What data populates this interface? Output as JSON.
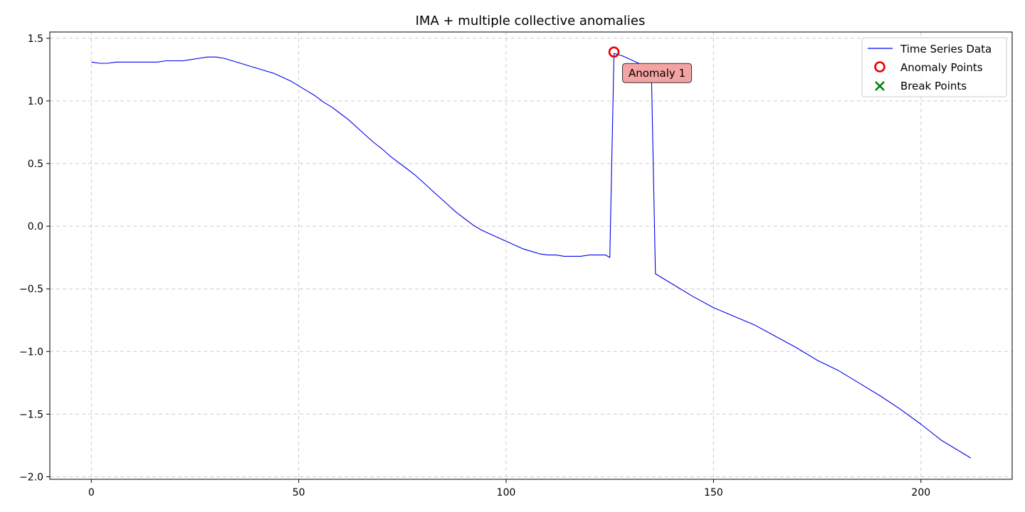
{
  "chart_data": {
    "type": "line",
    "title": "IMA + multiple collective anomalies",
    "xlabel": "",
    "ylabel": "",
    "xlim": [
      -10,
      222
    ],
    "ylim": [
      -2.02,
      1.55
    ],
    "xticks": [
      0,
      50,
      100,
      150,
      200
    ],
    "yticks": [
      1.5,
      1.0,
      0.5,
      0.0,
      -0.5,
      -1.0,
      -1.5,
      -2.0
    ],
    "ytick_labels": [
      "1.5",
      "1.0",
      "0.5",
      "0.0",
      "−0.5",
      "−1.0",
      "−1.5",
      "−2.0"
    ],
    "grid": true,
    "legend_position": "top-right",
    "colors": {
      "series": "#0000ee",
      "anomaly": "#ee0000",
      "break": "#008000",
      "annotation_fill": "#f4a3a3"
    },
    "series": [
      {
        "name": "Time Series Data",
        "x": [
          0,
          2,
          4,
          6,
          8,
          10,
          12,
          14,
          16,
          18,
          20,
          22,
          24,
          26,
          28,
          30,
          32,
          34,
          36,
          38,
          40,
          42,
          44,
          46,
          48,
          50,
          52,
          54,
          56,
          58,
          60,
          62,
          64,
          66,
          68,
          70,
          72,
          74,
          76,
          78,
          80,
          82,
          84,
          86,
          88,
          90,
          92,
          94,
          96,
          98,
          100,
          102,
          104,
          106,
          108,
          110,
          112,
          114,
          116,
          118,
          120,
          122,
          124,
          125,
          126,
          128,
          130,
          132,
          134,
          135,
          136,
          140,
          145,
          150,
          155,
          160,
          165,
          170,
          175,
          180,
          185,
          190,
          195,
          200,
          205,
          210,
          212
        ],
        "y": [
          1.31,
          1.3,
          1.3,
          1.31,
          1.31,
          1.31,
          1.31,
          1.31,
          1.31,
          1.32,
          1.32,
          1.32,
          1.33,
          1.34,
          1.35,
          1.35,
          1.34,
          1.32,
          1.3,
          1.28,
          1.26,
          1.24,
          1.22,
          1.19,
          1.16,
          1.12,
          1.08,
          1.04,
          0.99,
          0.95,
          0.9,
          0.85,
          0.79,
          0.73,
          0.67,
          0.62,
          0.56,
          0.51,
          0.46,
          0.41,
          0.35,
          0.29,
          0.23,
          0.17,
          0.11,
          0.06,
          0.01,
          -0.03,
          -0.06,
          -0.09,
          -0.12,
          -0.15,
          -0.18,
          -0.2,
          -0.22,
          -0.23,
          -0.23,
          -0.24,
          -0.24,
          -0.24,
          -0.23,
          -0.23,
          -0.23,
          -0.25,
          1.38,
          1.36,
          1.33,
          1.3,
          1.28,
          1.27,
          -0.38,
          -0.46,
          -0.56,
          -0.65,
          -0.72,
          -0.79,
          -0.88,
          -0.97,
          -1.07,
          -1.15,
          -1.25,
          -1.35,
          -1.46,
          -1.58,
          -1.71,
          -1.81,
          -1.85
        ]
      }
    ],
    "anomaly_points": {
      "name": "Anomaly Points",
      "x": [
        126
      ],
      "y": [
        1.39
      ]
    },
    "break_points": {
      "name": "Break Points",
      "x": [],
      "y": []
    },
    "annotations": [
      {
        "text": "Anomaly 1",
        "x": 126,
        "y": 1.39
      }
    ]
  }
}
